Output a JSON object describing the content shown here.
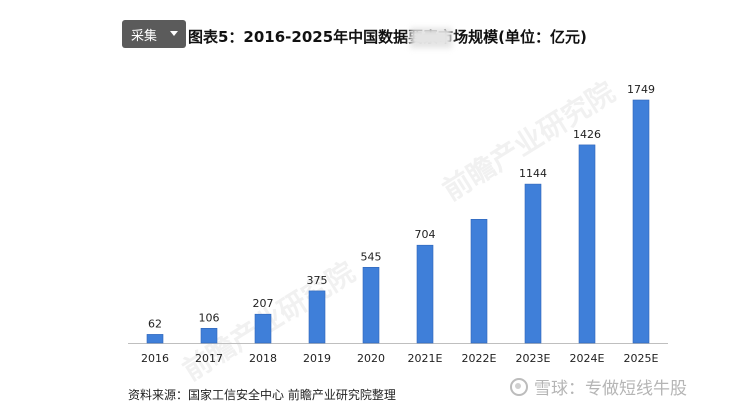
{
  "toolbar": {
    "collect_label": "采集",
    "dropdown_icon": "chevron-down-icon"
  },
  "watermark": {
    "icon": "snowball-icon",
    "text": "雪球：专做短线牛股"
  },
  "source": "资料来源：国家工信安全中心 前瞻产业研究院整理",
  "colors": {
    "bar": "#3f7fd9",
    "bar_edge": "#2f65b8",
    "axis": "#bfbfbf",
    "toolbar_bg": "#5b5b5b"
  },
  "chart_data": {
    "type": "bar",
    "title": "图表5：2016-2025年中国数据要素市场规模(单位：亿元)",
    "categories": [
      "2016",
      "2017",
      "2018",
      "2019",
      "2020",
      "2021E",
      "2022E",
      "2023E",
      "2024E",
      "2025E"
    ],
    "values": [
      62,
      106,
      207,
      375,
      545,
      704,
      890,
      1144,
      1426,
      1749
    ],
    "data_labels": [
      "62",
      "106",
      "207",
      "375",
      "545",
      "704",
      "",
      "1144",
      "1426",
      "1749"
    ],
    "ylim": [
      0,
      1749
    ],
    "grid": false,
    "legend": "none"
  }
}
